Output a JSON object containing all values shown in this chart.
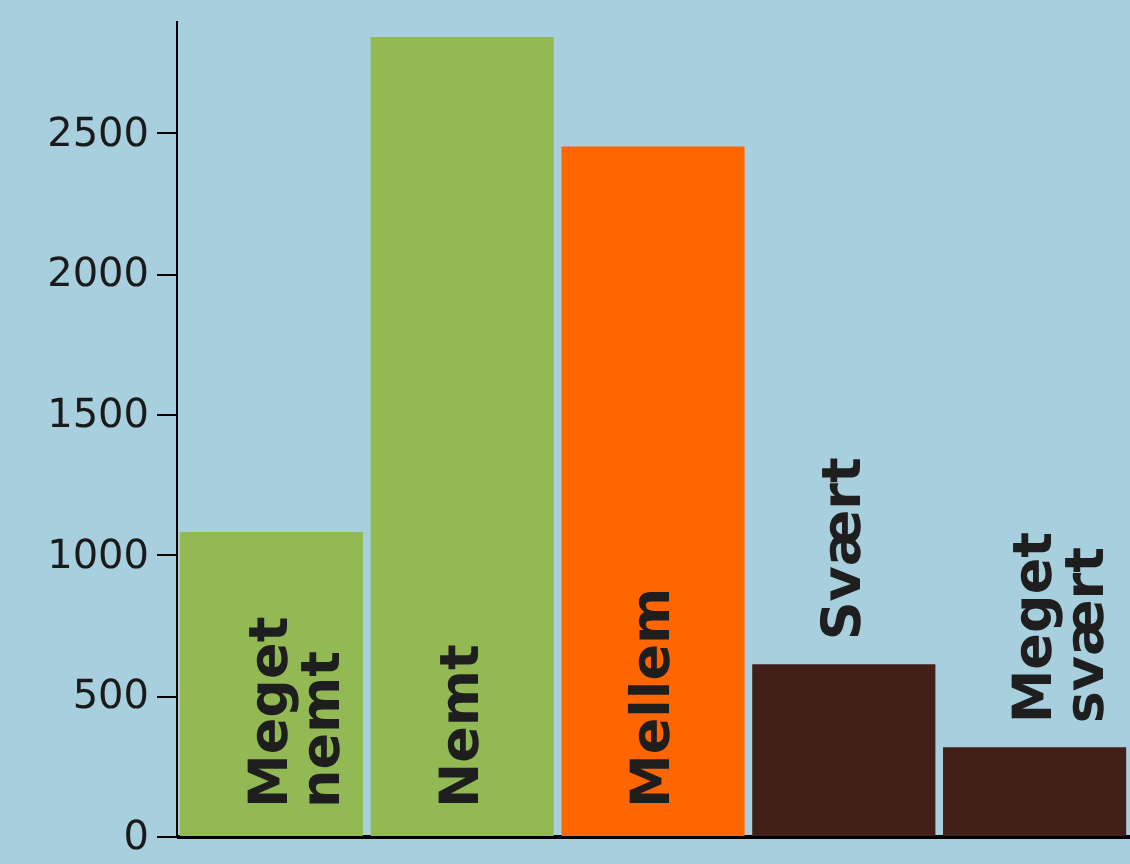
{
  "chart_data": {
    "type": "bar",
    "categories": [
      "Meget nemt",
      "Nemt",
      "Mellem",
      "Svært",
      "Meget svært"
    ],
    "values": [
      1080,
      2840,
      2450,
      610,
      315
    ],
    "colors": [
      "#93b955",
      "#93b955",
      "#ff6600",
      "#42201a",
      "#42201a"
    ],
    "ylim": [
      0,
      2900
    ],
    "yticks": [
      0,
      500,
      1000,
      1500,
      2000,
      2500
    ],
    "grid": false
  }
}
